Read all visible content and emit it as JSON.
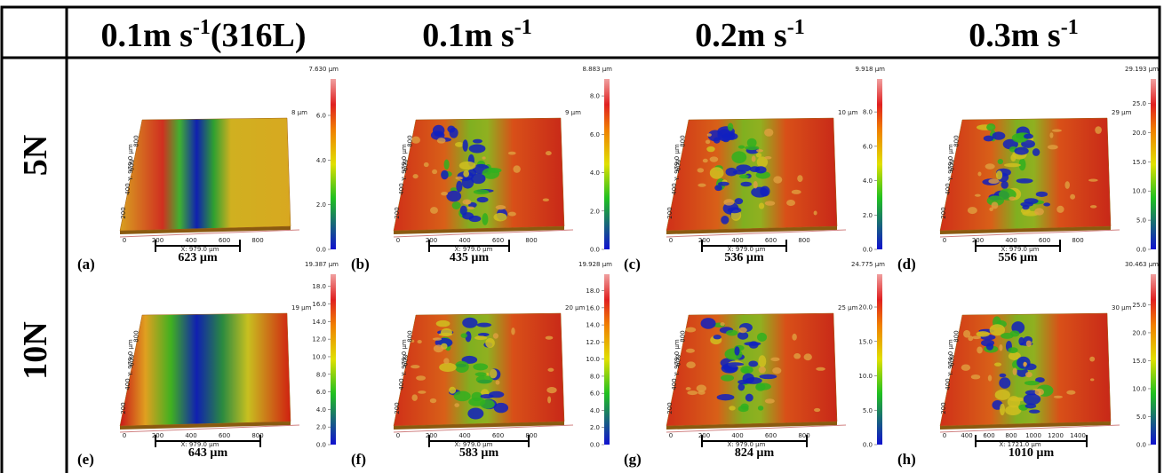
{
  "header": {
    "columns": [
      {
        "main": "0.1m s",
        "sup": "-1",
        "suffix": "(316L)"
      },
      {
        "main": "0.1m s",
        "sup": "-1"
      },
      {
        "main": "0.2m s",
        "sup": "-1"
      },
      {
        "main": "0.3m s",
        "sup": "-1"
      }
    ]
  },
  "rows": [
    "5N",
    "10N"
  ],
  "panels": [
    {
      "label": "(a)",
      "scale_bar": "623 µm",
      "z_label": "8 µm",
      "x_axis_label": "X: 979.0 µm",
      "x_ticks": [
        "0",
        "200",
        "400",
        "600",
        "800"
      ],
      "y_axis_label": "Y: 979.0 µm",
      "y_ticks": [
        "200",
        "400",
        "600",
        "800"
      ],
      "colorbar": {
        "max": {
          "value": 7.63,
          "label": "7.630 µm"
        },
        "ticks": [
          {
            "value": 0,
            "label": "0.0"
          },
          {
            "value": 2,
            "label": "2.0"
          },
          {
            "value": 4,
            "label": "4.0"
          },
          {
            "value": 6,
            "label": "6.0"
          }
        ]
      }
    },
    {
      "label": "(b)",
      "scale_bar": "435 µm",
      "z_label": "9 µm",
      "x_axis_label": "X: 979.0 µm",
      "x_ticks": [
        "0",
        "200",
        "400",
        "600",
        "800"
      ],
      "y_axis_label": "Y: 979.0 µm",
      "y_ticks": [
        "200",
        "400",
        "600",
        "800"
      ],
      "colorbar": {
        "max": {
          "value": 8.883,
          "label": "8.883 µm"
        },
        "ticks": [
          {
            "value": 0,
            "label": "0.0"
          },
          {
            "value": 2,
            "label": "2.0"
          },
          {
            "value": 4,
            "label": "4.0"
          },
          {
            "value": 6,
            "label": "6.0"
          },
          {
            "value": 8,
            "label": "8.0"
          }
        ]
      }
    },
    {
      "label": "(c)",
      "scale_bar": "536 µm",
      "z_label": "10 µm",
      "x_axis_label": "X: 979.0 µm",
      "x_ticks": [
        "0",
        "200",
        "400",
        "600",
        "800"
      ],
      "y_axis_label": "Y: 979.0 µm",
      "y_ticks": [
        "200",
        "400",
        "600",
        "800"
      ],
      "colorbar": {
        "max": {
          "value": 9.918,
          "label": "9.918 µm"
        },
        "ticks": [
          {
            "value": 0,
            "label": "0.0"
          },
          {
            "value": 2,
            "label": "2.0"
          },
          {
            "value": 4,
            "label": "4.0"
          },
          {
            "value": 6,
            "label": "6.0"
          },
          {
            "value": 8,
            "label": "8.0"
          }
        ]
      }
    },
    {
      "label": "(d)",
      "scale_bar": "556 µm",
      "z_label": "29 µm",
      "x_axis_label": "X: 979.0 µm",
      "x_ticks": [
        "0",
        "200",
        "400",
        "600",
        "800"
      ],
      "y_axis_label": "Y: 979.0 µm",
      "y_ticks": [
        "200",
        "400",
        "600",
        "800"
      ],
      "colorbar": {
        "max": {
          "value": 29.193,
          "label": "29.193 µm"
        },
        "ticks": [
          {
            "value": 0,
            "label": "0.0"
          },
          {
            "value": 5,
            "label": "5.0"
          },
          {
            "value": 10,
            "label": "10.0"
          },
          {
            "value": 15,
            "label": "15.0"
          },
          {
            "value": 20,
            "label": "20.0"
          },
          {
            "value": 25,
            "label": "25.0"
          }
        ]
      }
    },
    {
      "label": "(e)",
      "scale_bar": "643 µm",
      "z_label": "19 µm",
      "x_axis_label": "X: 979.0 µm",
      "x_ticks": [
        "0",
        "200",
        "400",
        "600",
        "800"
      ],
      "y_axis_label": "Y: 979.0 µm",
      "y_ticks": [
        "200",
        "400",
        "600",
        "800"
      ],
      "colorbar": {
        "max": {
          "value": 19.387,
          "label": "19.387 µm"
        },
        "ticks": [
          {
            "value": 0,
            "label": "0.0"
          },
          {
            "value": 2,
            "label": "2.0"
          },
          {
            "value": 4,
            "label": "4.0"
          },
          {
            "value": 6,
            "label": "6.0"
          },
          {
            "value": 8,
            "label": "8.0"
          },
          {
            "value": 10,
            "label": "10.0"
          },
          {
            "value": 12,
            "label": "12.0"
          },
          {
            "value": 14,
            "label": "14.0"
          },
          {
            "value": 16,
            "label": "16.0"
          },
          {
            "value": 18,
            "label": "18.0"
          }
        ]
      }
    },
    {
      "label": "(f)",
      "scale_bar": "583 µm",
      "z_label": "20 µm",
      "x_axis_label": "X: 979.0 µm",
      "x_ticks": [
        "0",
        "200",
        "400",
        "600",
        "800"
      ],
      "y_axis_label": "Y: 979.0 µm",
      "y_ticks": [
        "200",
        "400",
        "600",
        "800"
      ],
      "colorbar": {
        "max": {
          "value": 19.928,
          "label": "19.928 µm"
        },
        "ticks": [
          {
            "value": 0,
            "label": "0.0"
          },
          {
            "value": 2,
            "label": "2.0"
          },
          {
            "value": 4,
            "label": "4.0"
          },
          {
            "value": 6,
            "label": "6.0"
          },
          {
            "value": 8,
            "label": "8.0"
          },
          {
            "value": 10,
            "label": "10.0"
          },
          {
            "value": 12,
            "label": "12.0"
          },
          {
            "value": 14,
            "label": "14.0"
          },
          {
            "value": 16,
            "label": "16.0"
          },
          {
            "value": 18,
            "label": "18.0"
          }
        ]
      }
    },
    {
      "label": "(g)",
      "scale_bar": "824 µm",
      "z_label": "25 µm",
      "x_axis_label": "X: 979.0 µm",
      "x_ticks": [
        "0",
        "200",
        "400",
        "600",
        "800"
      ],
      "y_axis_label": "Y: 979.0 µm",
      "y_ticks": [
        "200",
        "400",
        "600",
        "800"
      ],
      "colorbar": {
        "max": {
          "value": 24.775,
          "label": "24.775 µm"
        },
        "ticks": [
          {
            "value": 0,
            "label": "0.0"
          },
          {
            "value": 5,
            "label": "5.0"
          },
          {
            "value": 10,
            "label": "10.0"
          },
          {
            "value": 15,
            "label": "15.0"
          },
          {
            "value": 20,
            "label": "20.0"
          }
        ]
      }
    },
    {
      "label": "(h)",
      "scale_bar": "1010 µm",
      "z_label": "30 µm",
      "x_axis_label": "X: 1721.0 µm",
      "x_ticks": [
        "0",
        "400",
        "600",
        "800",
        "1000",
        "1200",
        "1400"
      ],
      "y_axis_label": "Y: 974.0 µm",
      "y_ticks": [
        "200",
        "400",
        "600",
        "800"
      ],
      "colorbar": {
        "max": {
          "value": 30.463,
          "label": "30.463 µm"
        },
        "ticks": [
          {
            "value": 0,
            "label": "0.0"
          },
          {
            "value": 5,
            "label": "5.0"
          },
          {
            "value": 10,
            "label": "10.0"
          },
          {
            "value": 15,
            "label": "15.0"
          },
          {
            "value": 20,
            "label": "20.0"
          },
          {
            "value": 25,
            "label": "25.0"
          }
        ]
      }
    }
  ]
}
